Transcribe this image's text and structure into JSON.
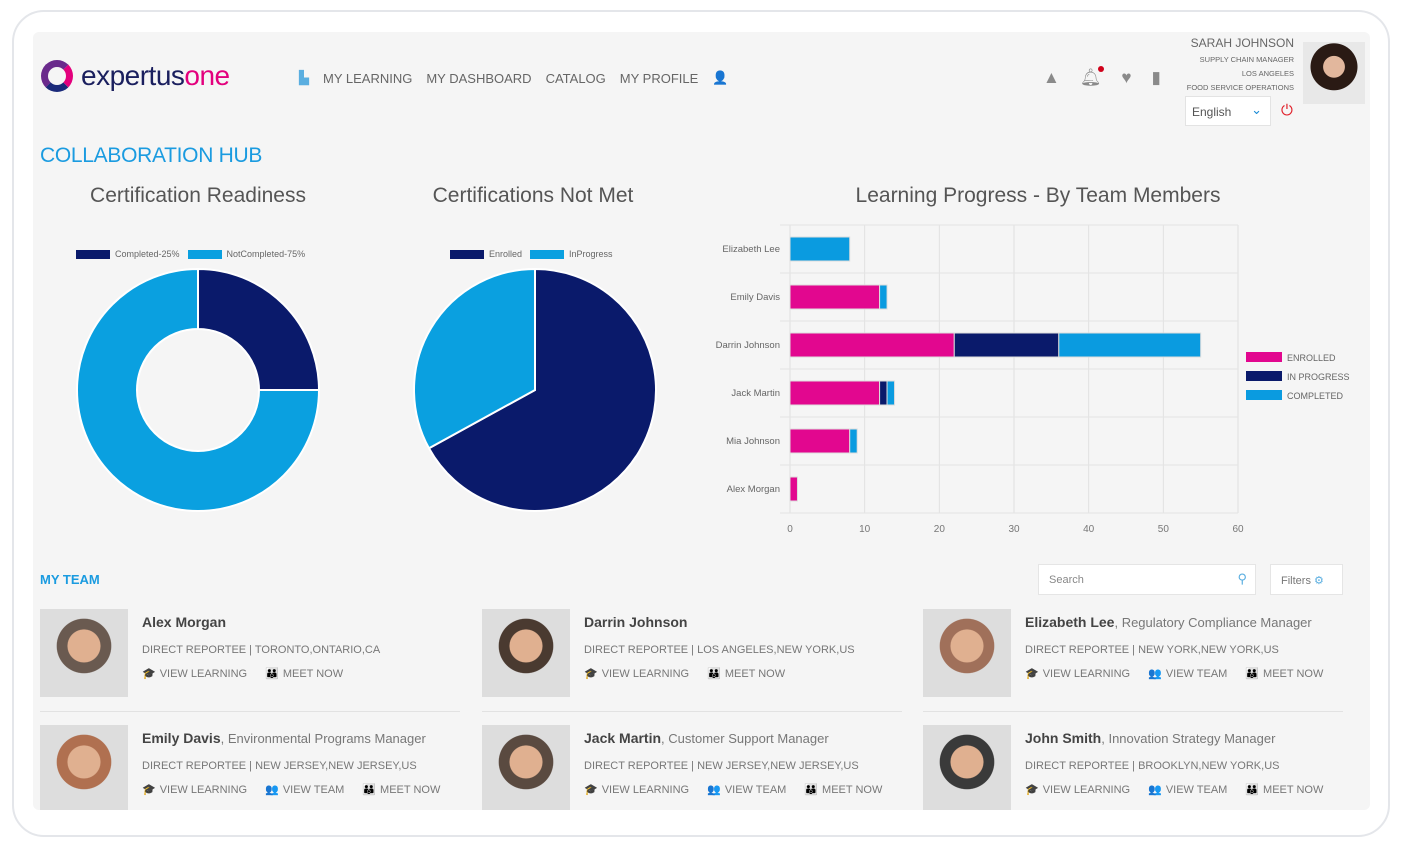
{
  "header": {
    "logo": "expertusone",
    "nav": [
      "MY LEARNING",
      "MY DASHBOARD",
      "CATALOG",
      "MY PROFILE"
    ],
    "user": {
      "name": "SARAH JOHNSON",
      "title": "SUPPLY CHAIN MANAGER",
      "location": "LOS ANGELES",
      "department": "FOOD SERVICE OPERATIONS"
    },
    "language": "English"
  },
  "page_title": "COLLABORATION HUB",
  "chart_data": [
    {
      "type": "pie",
      "variant": "donut",
      "title": "Certification Readiness",
      "labels": [
        "Completed-25%",
        "NotCompleted-75%"
      ],
      "values": [
        25,
        75
      ],
      "colors": [
        "#0a1a6b",
        "#0aa0e0"
      ],
      "legend": "top"
    },
    {
      "type": "pie",
      "title": "Certifications Not Met",
      "labels": [
        "Enrolled",
        "InProgress"
      ],
      "values": [
        67,
        33
      ],
      "colors": [
        "#0a1a6b",
        "#0aa0e0"
      ],
      "legend": "top"
    },
    {
      "type": "bar",
      "orientation": "horizontal",
      "stacked": true,
      "title": "Learning Progress - By Team Members",
      "categories": [
        "Elizabeth Lee",
        "Emily Davis",
        "Darrin Johnson",
        "Jack Martin",
        "Mia Johnson",
        "Alex Morgan"
      ],
      "series": [
        {
          "name": "ENROLLED",
          "color": "#e2078f",
          "values": [
            0,
            12,
            22,
            12,
            8,
            1
          ]
        },
        {
          "name": "IN PROGRESS",
          "color": "#0a1a6b",
          "values": [
            0,
            0,
            14,
            1,
            0,
            0
          ]
        },
        {
          "name": "COMPLETED",
          "color": "#0a9be0",
          "values": [
            8,
            1,
            19,
            1,
            1,
            0
          ]
        }
      ],
      "xlim": [
        0,
        60
      ],
      "xticks": [
        0,
        10,
        20,
        30,
        40,
        50,
        60
      ],
      "grid": true,
      "legend": "right"
    }
  ],
  "team": {
    "title": "MY TEAM",
    "search_placeholder": "Search",
    "filters_label": "Filters",
    "members": [
      {
        "name": "Alex Morgan",
        "role": "",
        "info": "DIRECT REPORTEE | TORONTO,ONTARIO,CA",
        "actions": [
          "VIEW LEARNING",
          "MEET NOW"
        ]
      },
      {
        "name": "Darrin Johnson",
        "role": "",
        "info": "DIRECT REPORTEE | LOS ANGELES,NEW YORK,US",
        "actions": [
          "VIEW LEARNING",
          "MEET NOW"
        ]
      },
      {
        "name": "Elizabeth Lee",
        "role": ", Regulatory Compliance Manager",
        "info": "DIRECT REPORTEE | NEW YORK,NEW YORK,US",
        "actions": [
          "VIEW LEARNING",
          "VIEW TEAM",
          "MEET NOW"
        ]
      },
      {
        "name": "Emily Davis",
        "role": ", Environmental Programs Manager",
        "info": "DIRECT REPORTEE | NEW JERSEY,NEW JERSEY,US",
        "actions": [
          "VIEW LEARNING",
          "VIEW TEAM",
          "MEET NOW"
        ]
      },
      {
        "name": "Jack Martin",
        "role": ", Customer Support Manager",
        "info": "DIRECT REPORTEE | NEW JERSEY,NEW JERSEY,US",
        "actions": [
          "VIEW LEARNING",
          "VIEW TEAM",
          "MEET NOW"
        ]
      },
      {
        "name": "John Smith",
        "role": ", Innovation Strategy Manager",
        "info": "DIRECT REPORTEE | BROOKLYN,NEW YORK,US",
        "actions": [
          "VIEW LEARNING",
          "VIEW TEAM",
          "MEET NOW"
        ]
      }
    ]
  }
}
